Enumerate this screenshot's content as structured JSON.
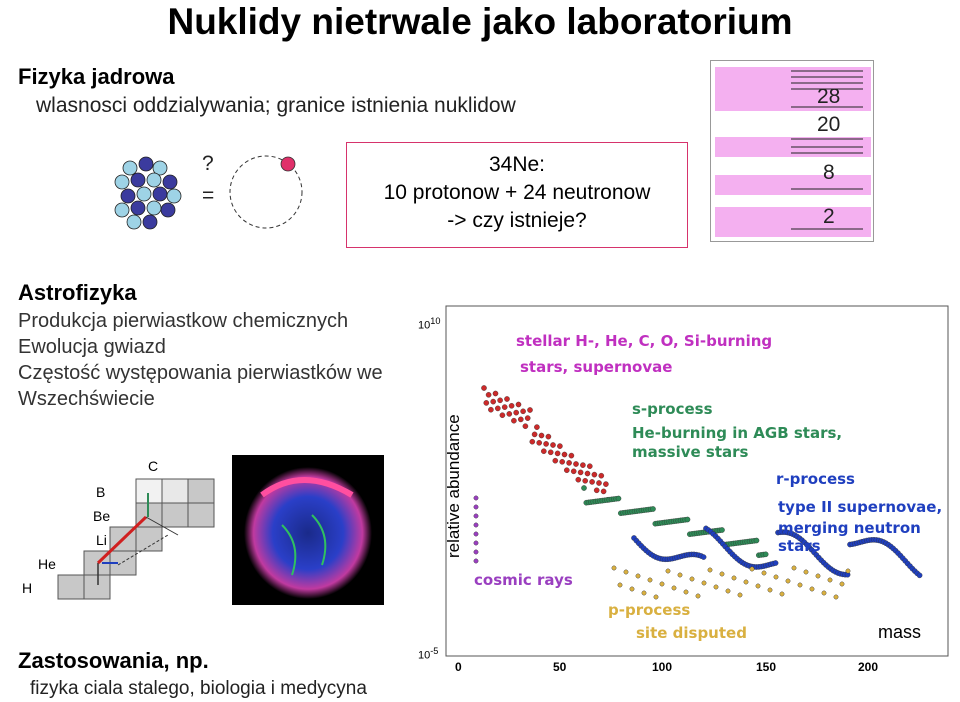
{
  "title": "Nuklidy nietrwale jako laboratorium",
  "nuclear": {
    "heading": "Fizyka jadrowa",
    "subtitle": "wlasnosci oddzialywania; granice istnienia nuklidow",
    "question_mark": "?",
    "equals_sign": "=",
    "box_title": "34Ne:",
    "box_line1": "10 protonow + 24 neutronow",
    "box_line2": "-> czy istnieje?",
    "shell_numbers": [
      "28",
      "20",
      "8",
      "2"
    ]
  },
  "astro": {
    "heading": "Astrofizyka",
    "lines": [
      "Produkcja pierwiastkow chemicznych",
      "Ewolucja gwiazd",
      "Częstość występowania pierwiastków we",
      "Wszechświecie"
    ]
  },
  "chart_labels": {
    "elements": {
      "c": "C",
      "b": "B",
      "be": "Be",
      "li": "Li",
      "he": "He",
      "h": "H"
    }
  },
  "abundance": {
    "ylabel": "relative abundance",
    "xlabel": "mass",
    "y_top": "10",
    "y_top_exp": "10",
    "y_bottom": "10",
    "y_bottom_exp": "-5",
    "xticks": [
      "0",
      "50",
      "100",
      "150",
      "200"
    ],
    "labels": {
      "stellar": "stellar H-, He, C, O, Si-burning",
      "stars": "stars, supernovae",
      "sprocess": "s-process",
      "heburning": "He-burning in AGB stars,",
      "massive": "massive stars",
      "rprocess": "r-process",
      "type2": "type II supernovae,",
      "merging": "merging neutron stars",
      "cosmic": "cosmic rays",
      "pprocess": "p-process",
      "disputed": "site disputed"
    },
    "colors": {
      "red": "#cc2a2a",
      "green": "#2e8b57",
      "blue": "#1f3fbf",
      "gold": "#d9b040",
      "purple": "#9a3fc0",
      "label": "#c030c0",
      "label_blue": "#1f3fbf"
    }
  },
  "applications": {
    "heading": "Zastosowania, np.",
    "line": "fizyka ciala stalego, biologia i medycyna"
  }
}
